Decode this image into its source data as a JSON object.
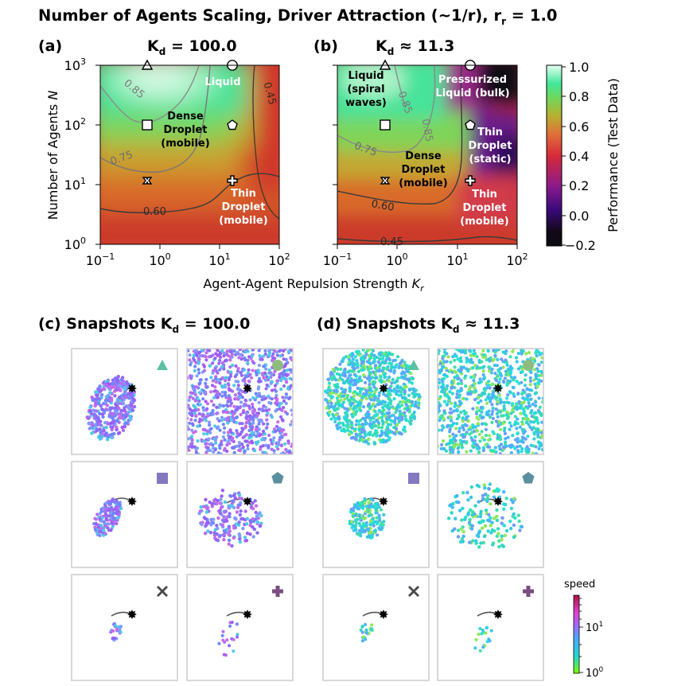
{
  "figure": {
    "suptitle": "Number of Agents Scaling, Driver Attraction (~1/r), r_r = 1.0",
    "suptitle_parts": {
      "main": "Number of Agents Scaling, Driver Attraction (~1/r), r",
      "sub": "r",
      "tail": " = 1.0"
    }
  },
  "chart_data": [
    {
      "type": "heatmap",
      "panel": "(a)",
      "title": "K_d = 100.0",
      "title_parts": {
        "pre": "K",
        "sub": "d",
        "post": " = 100.0"
      },
      "xlabel": "Agent-Agent Repulsion Strength  K_r",
      "ylabel": "Number of Agents N",
      "xscale": "log",
      "yscale": "log",
      "xlim": [
        0.1,
        100
      ],
      "ylim": [
        1,
        1000
      ],
      "x_ticks": [
        "10^-1",
        "10^0",
        "10^1",
        "10^2"
      ],
      "y_ticks": [
        "10^0",
        "10^1",
        "10^2",
        "10^3"
      ],
      "value_range": [
        -0.2,
        1.0
      ],
      "contours": [
        {
          "level": 0.45,
          "label": "0.45"
        },
        {
          "level": 0.6,
          "label": "0.60"
        },
        {
          "level": 0.75,
          "label": "0.75"
        },
        {
          "level": 0.85,
          "label": "0.85"
        }
      ],
      "markers": [
        {
          "shape": "triangle",
          "Kr": 0.63,
          "N": 1000
        },
        {
          "shape": "circle",
          "Kr": 16,
          "N": 1000
        },
        {
          "shape": "square",
          "Kr": 0.63,
          "N": 100
        },
        {
          "shape": "pentagon",
          "Kr": 16,
          "N": 100
        },
        {
          "shape": "x",
          "Kr": 0.63,
          "N": 12
        },
        {
          "shape": "plus",
          "Kr": 16,
          "N": 12
        }
      ],
      "regions": [
        {
          "text": [
            "Liquid"
          ],
          "color": "#ffffff"
        },
        {
          "text": [
            "Dense",
            "Droplet",
            "(mobile)"
          ],
          "color": "#000000"
        },
        {
          "text": [
            "Thin",
            "Droplet",
            "(mobile)"
          ],
          "color": "#ffffff"
        }
      ]
    },
    {
      "type": "heatmap",
      "panel": "(b)",
      "title": "K_d ≈ 11.3",
      "title_parts": {
        "pre": "K",
        "sub": "d",
        "post": " ≈ 11.3"
      },
      "xlabel": "Agent-Agent Repulsion Strength  K_r",
      "xscale": "log",
      "yscale": "log",
      "xlim": [
        0.1,
        100
      ],
      "ylim": [
        1,
        1000
      ],
      "x_ticks": [
        "10^-1",
        "10^0",
        "10^1",
        "10^2"
      ],
      "contours": [
        {
          "level": 0.45,
          "label": "0.45"
        },
        {
          "level": 0.6,
          "label": "0.60"
        },
        {
          "level": 0.75,
          "label": "0.75"
        },
        {
          "level": 0.85,
          "label": "0.85"
        },
        {
          "level": 0.85,
          "label": "0.85"
        }
      ],
      "markers": [
        {
          "shape": "triangle",
          "Kr": 0.63,
          "N": 1000
        },
        {
          "shape": "circle",
          "Kr": 16,
          "N": 1000
        },
        {
          "shape": "square",
          "Kr": 0.63,
          "N": 100
        },
        {
          "shape": "pentagon",
          "Kr": 16,
          "N": 100
        },
        {
          "shape": "x",
          "Kr": 0.63,
          "N": 12
        },
        {
          "shape": "plus",
          "Kr": 16,
          "N": 12
        }
      ],
      "regions": [
        {
          "text": [
            "Liquid",
            "(spiral",
            "waves)"
          ],
          "color": "#000000"
        },
        {
          "text": [
            "Pressurized",
            "Liquid (bulk)"
          ],
          "color": "#ffffff"
        },
        {
          "text": [
            "Dense",
            "Droplet",
            "(mobile)"
          ],
          "color": "#000000"
        },
        {
          "text": [
            "Thin",
            "Droplet",
            "(static)"
          ],
          "color": "#ffffff"
        },
        {
          "text": [
            "Thin",
            "Droplet",
            "(mobile)"
          ],
          "color": "#ffffff"
        }
      ]
    }
  ],
  "colorbar": {
    "label": "Performance (Test Data)",
    "ticks": [
      "1.0",
      "0.8",
      "0.6",
      "0.4",
      "0.2",
      "0.0",
      "−0.2"
    ],
    "range": [
      -0.2,
      1.0
    ]
  },
  "snapshots": [
    {
      "panel": "(c)",
      "title": "Snapshots K_d = 100.0",
      "title_parts": {
        "pre": "Snapshots K",
        "sub": "d",
        "post": " = 100.0"
      }
    },
    {
      "panel": "(d)",
      "title": "Snapshots K_d ≈ 11.3",
      "title_parts": {
        "pre": "Snapshots K",
        "sub": "d",
        "post": " ≈ 11.3"
      }
    }
  ],
  "speed_colorbar": {
    "label": "speed",
    "ticks": [
      "10^1",
      "10^0"
    ]
  },
  "colors": {
    "triangle": "#5dbfa3",
    "circle": "#8fbc7e",
    "square": "#8478bf",
    "pentagon": "#5a8fa0",
    "x": "#4a4a4a",
    "plus": "#7a4e82"
  }
}
